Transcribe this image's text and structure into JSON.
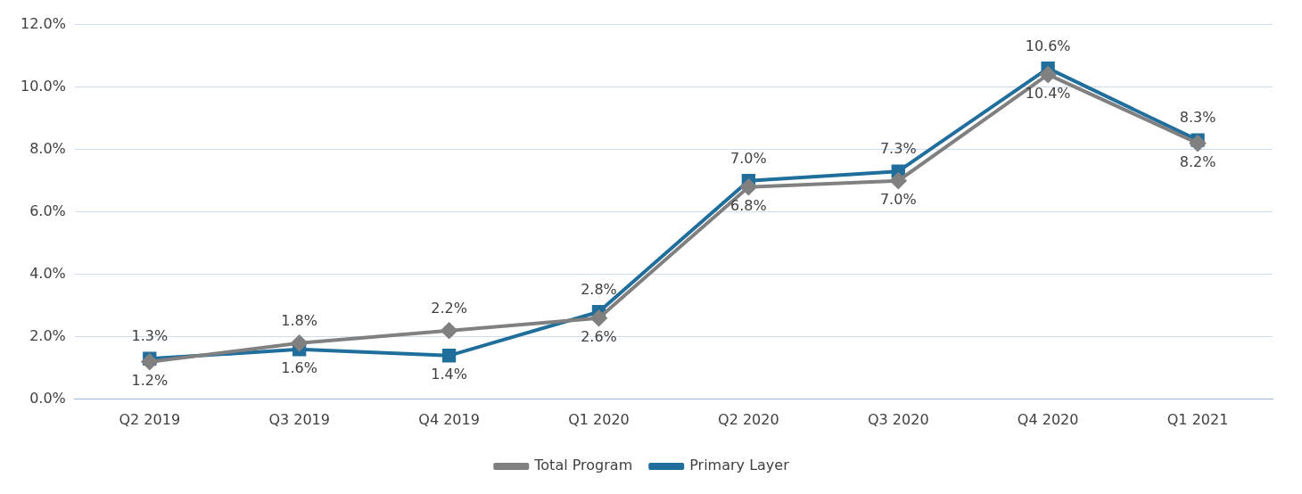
{
  "chart_data": {
    "type": "line",
    "categories": [
      "Q2 2019",
      "Q3 2019",
      "Q4 2019",
      "Q1 2020",
      "Q2 2020",
      "Q3 2020",
      "Q4 2020",
      "Q1 2021"
    ],
    "series": [
      {
        "name": "Total Program",
        "color": "#808080",
        "marker": "diamond",
        "values": [
          1.2,
          1.8,
          2.2,
          2.6,
          6.8,
          7.0,
          10.4,
          8.2
        ],
        "value_labels": [
          "1.2%",
          "1.8%",
          "2.2%",
          "2.6%",
          "6.8%",
          "7.0%",
          "10.4%",
          "8.2%"
        ]
      },
      {
        "name": "Primary Layer",
        "color": "#1f6e9c",
        "marker": "square",
        "values": [
          1.3,
          1.6,
          1.4,
          2.8,
          7.0,
          7.3,
          10.6,
          8.3
        ],
        "value_labels": [
          "1.3%",
          "1.6%",
          "1.4%",
          "2.8%",
          "7.0%",
          "7.3%",
          "10.6%",
          "8.3%"
        ]
      }
    ],
    "ylim": [
      0,
      12
    ],
    "yticks": [
      {
        "value": 0,
        "label": "0.0%"
      },
      {
        "value": 2,
        "label": "2.0%"
      },
      {
        "value": 4,
        "label": "4.0%"
      },
      {
        "value": 6,
        "label": "6.0%"
      },
      {
        "value": 8,
        "label": "8.0%"
      },
      {
        "value": 10,
        "label": "10.0%"
      },
      {
        "value": 12,
        "label": "12.0%"
      }
    ],
    "grid": "y",
    "legend": "bottom",
    "line_style": "solid"
  }
}
